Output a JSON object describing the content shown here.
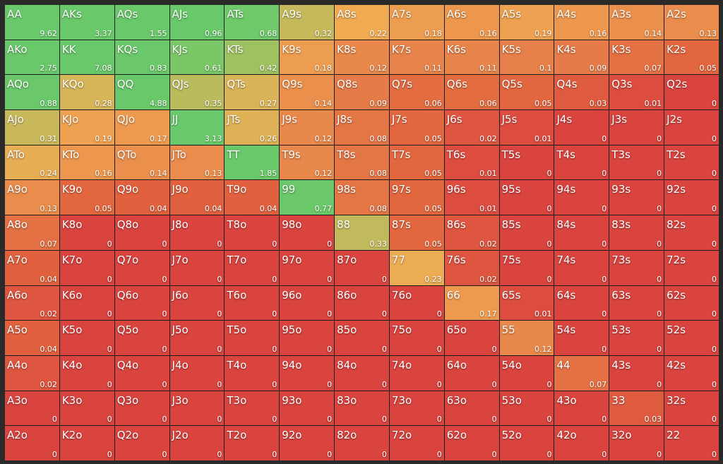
{
  "grid": {
    "color_scale": [
      {
        "value": 0,
        "color": "#d9443f"
      },
      {
        "value": 0.02,
        "color": "#de5540"
      },
      {
        "value": 0.05,
        "color": "#e2673f"
      },
      {
        "value": 0.1,
        "color": "#e6804a"
      },
      {
        "value": 0.16,
        "color": "#ec974d"
      },
      {
        "value": 0.22,
        "color": "#f0aa52"
      },
      {
        "value": 0.3,
        "color": "#cdb75a"
      },
      {
        "value": 0.45,
        "color": "#92c463"
      },
      {
        "value": 0.7,
        "color": "#6cc86a"
      },
      {
        "value": 1,
        "color": "#69c86a"
      }
    ],
    "rows": [
      [
        {
          "hand": "AA",
          "value": 9.62
        },
        {
          "hand": "AKs",
          "value": 3.37
        },
        {
          "hand": "AQs",
          "value": 1.55
        },
        {
          "hand": "AJs",
          "value": 0.96
        },
        {
          "hand": "ATs",
          "value": 0.68
        },
        {
          "hand": "A9s",
          "value": 0.32
        },
        {
          "hand": "A8s",
          "value": 0.22
        },
        {
          "hand": "A7s",
          "value": 0.18
        },
        {
          "hand": "A6s",
          "value": 0.16
        },
        {
          "hand": "A5s",
          "value": 0.19
        },
        {
          "hand": "A4s",
          "value": 0.16
        },
        {
          "hand": "A3s",
          "value": 0.14
        },
        {
          "hand": "A2s",
          "value": 0.13
        }
      ],
      [
        {
          "hand": "AKo",
          "value": 2.75
        },
        {
          "hand": "KK",
          "value": 7.08
        },
        {
          "hand": "KQs",
          "value": 0.83
        },
        {
          "hand": "KJs",
          "value": 0.61
        },
        {
          "hand": "KTs",
          "value": 0.42
        },
        {
          "hand": "K9s",
          "value": 0.18
        },
        {
          "hand": "K8s",
          "value": 0.12
        },
        {
          "hand": "K7s",
          "value": 0.11
        },
        {
          "hand": "K6s",
          "value": 0.11
        },
        {
          "hand": "K5s",
          "value": 0.1
        },
        {
          "hand": "K4s",
          "value": 0.09
        },
        {
          "hand": "K3s",
          "value": 0.07
        },
        {
          "hand": "K2s",
          "value": 0.05
        }
      ],
      [
        {
          "hand": "AQo",
          "value": 0.88
        },
        {
          "hand": "KQo",
          "value": 0.28
        },
        {
          "hand": "QQ",
          "value": 4.88
        },
        {
          "hand": "QJs",
          "value": 0.35
        },
        {
          "hand": "QTs",
          "value": 0.27
        },
        {
          "hand": "Q9s",
          "value": 0.14
        },
        {
          "hand": "Q8s",
          "value": 0.09
        },
        {
          "hand": "Q7s",
          "value": 0.06
        },
        {
          "hand": "Q6s",
          "value": 0.06
        },
        {
          "hand": "Q5s",
          "value": 0.05
        },
        {
          "hand": "Q4s",
          "value": 0.03
        },
        {
          "hand": "Q3s",
          "value": 0.01
        },
        {
          "hand": "Q2s",
          "value": 0
        }
      ],
      [
        {
          "hand": "AJo",
          "value": 0.31
        },
        {
          "hand": "KJo",
          "value": 0.19
        },
        {
          "hand": "QJo",
          "value": 0.17
        },
        {
          "hand": "JJ",
          "value": 3.13
        },
        {
          "hand": "JTs",
          "value": 0.26
        },
        {
          "hand": "J9s",
          "value": 0.12
        },
        {
          "hand": "J8s",
          "value": 0.08
        },
        {
          "hand": "J7s",
          "value": 0.05
        },
        {
          "hand": "J6s",
          "value": 0.02
        },
        {
          "hand": "J5s",
          "value": 0.01
        },
        {
          "hand": "J4s",
          "value": 0
        },
        {
          "hand": "J3s",
          "value": 0
        },
        {
          "hand": "J2s",
          "value": 0
        }
      ],
      [
        {
          "hand": "ATo",
          "value": 0.24
        },
        {
          "hand": "KTo",
          "value": 0.16
        },
        {
          "hand": "QTo",
          "value": 0.14
        },
        {
          "hand": "JTo",
          "value": 0.13
        },
        {
          "hand": "TT",
          "value": 1.85
        },
        {
          "hand": "T9s",
          "value": 0.12
        },
        {
          "hand": "T8s",
          "value": 0.08
        },
        {
          "hand": "T7s",
          "value": 0.05
        },
        {
          "hand": "T6s",
          "value": 0.01
        },
        {
          "hand": "T5s",
          "value": 0
        },
        {
          "hand": "T4s",
          "value": 0
        },
        {
          "hand": "T3s",
          "value": 0
        },
        {
          "hand": "T2s",
          "value": 0
        }
      ],
      [
        {
          "hand": "A9o",
          "value": 0.13
        },
        {
          "hand": "K9o",
          "value": 0.05
        },
        {
          "hand": "Q9o",
          "value": 0.04
        },
        {
          "hand": "J9o",
          "value": 0.04
        },
        {
          "hand": "T9o",
          "value": 0.04
        },
        {
          "hand": "99",
          "value": 0.77
        },
        {
          "hand": "98s",
          "value": 0.08
        },
        {
          "hand": "97s",
          "value": 0.05
        },
        {
          "hand": "96s",
          "value": 0.01
        },
        {
          "hand": "95s",
          "value": 0
        },
        {
          "hand": "94s",
          "value": 0
        },
        {
          "hand": "93s",
          "value": 0
        },
        {
          "hand": "92s",
          "value": 0
        }
      ],
      [
        {
          "hand": "A8o",
          "value": 0.07
        },
        {
          "hand": "K8o",
          "value": 0
        },
        {
          "hand": "Q8o",
          "value": 0
        },
        {
          "hand": "J8o",
          "value": 0
        },
        {
          "hand": "T8o",
          "value": 0
        },
        {
          "hand": "98o",
          "value": 0
        },
        {
          "hand": "88",
          "value": 0.33
        },
        {
          "hand": "87s",
          "value": 0.05
        },
        {
          "hand": "86s",
          "value": 0.02
        },
        {
          "hand": "85s",
          "value": 0
        },
        {
          "hand": "84s",
          "value": 0
        },
        {
          "hand": "83s",
          "value": 0
        },
        {
          "hand": "82s",
          "value": 0
        }
      ],
      [
        {
          "hand": "A7o",
          "value": 0.04
        },
        {
          "hand": "K7o",
          "value": 0
        },
        {
          "hand": "Q7o",
          "value": 0
        },
        {
          "hand": "J7o",
          "value": 0
        },
        {
          "hand": "T7o",
          "value": 0
        },
        {
          "hand": "97o",
          "value": 0
        },
        {
          "hand": "87o",
          "value": 0
        },
        {
          "hand": "77",
          "value": 0.23
        },
        {
          "hand": "76s",
          "value": 0.02
        },
        {
          "hand": "75s",
          "value": 0
        },
        {
          "hand": "74s",
          "value": 0
        },
        {
          "hand": "73s",
          "value": 0
        },
        {
          "hand": "72s",
          "value": 0
        }
      ],
      [
        {
          "hand": "A6o",
          "value": 0.02
        },
        {
          "hand": "K6o",
          "value": 0
        },
        {
          "hand": "Q6o",
          "value": 0
        },
        {
          "hand": "J6o",
          "value": 0
        },
        {
          "hand": "T6o",
          "value": 0
        },
        {
          "hand": "96o",
          "value": 0
        },
        {
          "hand": "86o",
          "value": 0
        },
        {
          "hand": "76o",
          "value": 0
        },
        {
          "hand": "66",
          "value": 0.17
        },
        {
          "hand": "65s",
          "value": 0.01
        },
        {
          "hand": "64s",
          "value": 0
        },
        {
          "hand": "63s",
          "value": 0
        },
        {
          "hand": "62s",
          "value": 0
        }
      ],
      [
        {
          "hand": "A5o",
          "value": 0.04
        },
        {
          "hand": "K5o",
          "value": 0
        },
        {
          "hand": "Q5o",
          "value": 0
        },
        {
          "hand": "J5o",
          "value": 0
        },
        {
          "hand": "T5o",
          "value": 0
        },
        {
          "hand": "95o",
          "value": 0
        },
        {
          "hand": "85o",
          "value": 0
        },
        {
          "hand": "75o",
          "value": 0
        },
        {
          "hand": "65o",
          "value": 0
        },
        {
          "hand": "55",
          "value": 0.12
        },
        {
          "hand": "54s",
          "value": 0
        },
        {
          "hand": "53s",
          "value": 0
        },
        {
          "hand": "52s",
          "value": 0
        }
      ],
      [
        {
          "hand": "A4o",
          "value": 0.02
        },
        {
          "hand": "K4o",
          "value": 0
        },
        {
          "hand": "Q4o",
          "value": 0
        },
        {
          "hand": "J4o",
          "value": 0
        },
        {
          "hand": "T4o",
          "value": 0
        },
        {
          "hand": "94o",
          "value": 0
        },
        {
          "hand": "84o",
          "value": 0
        },
        {
          "hand": "74o",
          "value": 0
        },
        {
          "hand": "64o",
          "value": 0
        },
        {
          "hand": "54o",
          "value": 0
        },
        {
          "hand": "44",
          "value": 0.07
        },
        {
          "hand": "43s",
          "value": 0
        },
        {
          "hand": "42s",
          "value": 0
        }
      ],
      [
        {
          "hand": "A3o",
          "value": 0
        },
        {
          "hand": "K3o",
          "value": 0
        },
        {
          "hand": "Q3o",
          "value": 0
        },
        {
          "hand": "J3o",
          "value": 0
        },
        {
          "hand": "T3o",
          "value": 0
        },
        {
          "hand": "93o",
          "value": 0
        },
        {
          "hand": "83o",
          "value": 0
        },
        {
          "hand": "73o",
          "value": 0
        },
        {
          "hand": "63o",
          "value": 0
        },
        {
          "hand": "53o",
          "value": 0
        },
        {
          "hand": "43o",
          "value": 0
        },
        {
          "hand": "33",
          "value": 0.03
        },
        {
          "hand": "32s",
          "value": 0
        }
      ],
      [
        {
          "hand": "A2o",
          "value": 0
        },
        {
          "hand": "K2o",
          "value": 0
        },
        {
          "hand": "Q2o",
          "value": 0
        },
        {
          "hand": "J2o",
          "value": 0
        },
        {
          "hand": "T2o",
          "value": 0
        },
        {
          "hand": "92o",
          "value": 0
        },
        {
          "hand": "82o",
          "value": 0
        },
        {
          "hand": "72o",
          "value": 0
        },
        {
          "hand": "62o",
          "value": 0
        },
        {
          "hand": "52o",
          "value": 0
        },
        {
          "hand": "42o",
          "value": 0
        },
        {
          "hand": "32o",
          "value": 0
        },
        {
          "hand": "22",
          "value": 0
        }
      ]
    ]
  }
}
